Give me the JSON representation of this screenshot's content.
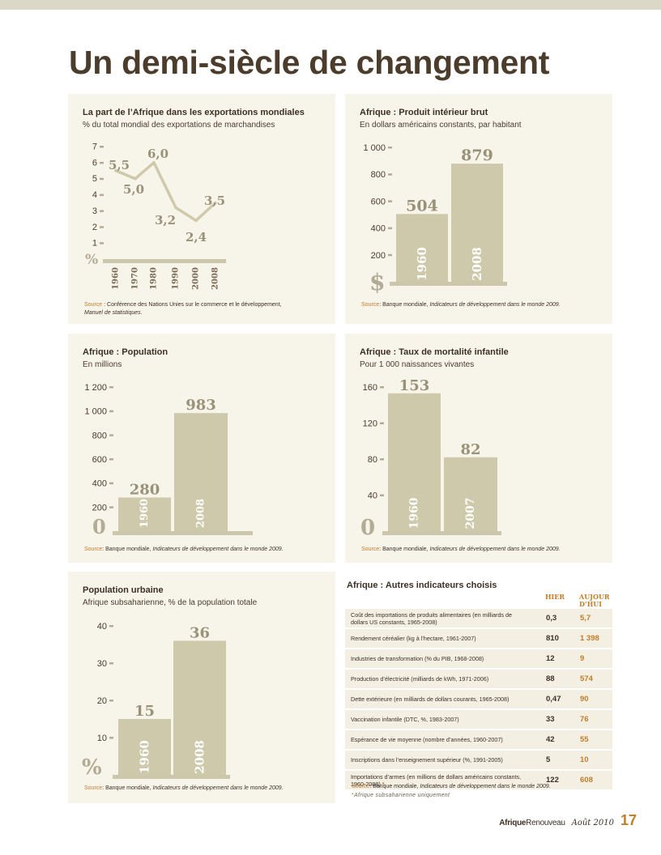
{
  "page": {
    "title": "Un demi-siècle de changement",
    "brand_a": "Afrique",
    "brand_b": "Renouveau",
    "date": "Août 2010",
    "page_number": "17"
  },
  "source_label": "Source",
  "chart_data": [
    {
      "id": "exports",
      "type": "line",
      "title": "La part de l’Afrique dans les exportations mondiales",
      "subtitle": "% du total mondial des exportations de marchandises",
      "x": [
        "1960",
        "1970",
        "1980",
        "1990",
        "2000",
        "2008"
      ],
      "values": [
        5.5,
        5.0,
        6.0,
        3.2,
        2.4,
        3.5
      ],
      "labels": [
        "5,5",
        "5,0",
        "6,0",
        "3,2",
        "2,4",
        "3,5"
      ],
      "y_ticks": [
        "1",
        "2",
        "3",
        "4",
        "5",
        "6",
        "7"
      ],
      "ylim": [
        0,
        7
      ],
      "unit_symbol": "%",
      "source_main": ": Conférence des Nations Unies sur le commerce et le développement,",
      "source_italic": "Manuel de statistiques."
    },
    {
      "id": "gdp",
      "type": "bar",
      "title": "Afrique : Produit intérieur brut",
      "subtitle": "En dollars américains constants, par habitant",
      "categories": [
        "1960",
        "2008"
      ],
      "values": [
        504,
        879
      ],
      "labels": [
        "504",
        "879"
      ],
      "y_ticks": [
        "200",
        "400",
        "600",
        "800",
        "1 000"
      ],
      "ylim": [
        0,
        1000
      ],
      "unit_symbol": "$",
      "source_main": "Banque mondiale, ",
      "source_italic": "Indicateurs de développement dans le monde 2009."
    },
    {
      "id": "population",
      "type": "bar",
      "title": "Afrique : Population",
      "subtitle": "En millions",
      "categories": [
        "1960",
        "2008"
      ],
      "values": [
        280,
        983
      ],
      "labels": [
        "280",
        "983"
      ],
      "y_ticks": [
        "200",
        "400",
        "600",
        "800",
        "1 000",
        "1 200"
      ],
      "ylim": [
        0,
        1200
      ],
      "unit_symbol": "0",
      "source_main": "Banque mondiale, ",
      "source_italic": "Indicateurs de développement dans le monde 2009."
    },
    {
      "id": "mortality",
      "type": "bar",
      "title": "Afrique : Taux de mortalité infantile",
      "subtitle": "Pour 1 000 naissances vivantes",
      "categories": [
        "1960",
        "2007"
      ],
      "values": [
        153,
        82
      ],
      "labels": [
        "153",
        "82"
      ],
      "y_ticks": [
        "40",
        "80",
        "120",
        "160"
      ],
      "ylim": [
        0,
        160
      ],
      "unit_symbol": "0",
      "source_main": "Banque mondiale, ",
      "source_italic": "Indicateurs de développement dans le monde 2009."
    },
    {
      "id": "urban",
      "type": "bar",
      "title": "Population urbaine",
      "subtitle": "Afrique subsaharienne, % de la population totale",
      "categories": [
        "1960",
        "2008"
      ],
      "values": [
        15,
        36
      ],
      "labels": [
        "15",
        "36"
      ],
      "y_ticks": [
        "10",
        "20",
        "30",
        "40"
      ],
      "ylim": [
        0,
        40
      ],
      "unit_symbol": "%",
      "source_main": "Banque mondiale, ",
      "source_italic": "Indicateurs de développement dans le monde 2009."
    },
    {
      "id": "indicators",
      "type": "table",
      "title": "Afrique : Autres indicateurs choisis",
      "col_hier": "HIER",
      "col_auj": "AUJOUR D’HUI",
      "rows": [
        {
          "label": "Coût des importations de produits alimentaires (en milliards de dollars US constants, 1965-2008)",
          "hier": "0,3",
          "auj": "5,7",
          "star": ""
        },
        {
          "label": "Rendement céréalier (kg à l’hectare, 1961-2007)",
          "hier": "810",
          "auj": "1 398",
          "star": ""
        },
        {
          "label": "Industries de transformation (% du PIB, 1968-2008)",
          "hier": "12",
          "auj": "9",
          "star": ""
        },
        {
          "label": "Production d’électricité (milliards de kWh, 1971-2006)",
          "hier": "88",
          "auj": "574",
          "star": ""
        },
        {
          "label": "Dette extérieure (en milliards de dollars courants, 1965-2008)",
          "hier": "0,47",
          "auj": "90",
          "star": ""
        },
        {
          "label": "Vaccination infantile (DTC, %, 1983-2007)",
          "hier": "33",
          "auj": "76",
          "star": ""
        },
        {
          "label": "Espérance de vie moyenne (nombre d’années, 1960-2007)",
          "hier": "42",
          "auj": "55",
          "star": ""
        },
        {
          "label": "Inscriptions dans l’enseignement supérieur (%, 1991-2005)",
          "hier": "5",
          "auj": "10",
          "star": ""
        },
        {
          "label": "Importations d’armes (en millions de dollars américains constants, 1960-2008)",
          "hier": "122",
          "auj": "608",
          "star": "*"
        }
      ],
      "source_main": "Banque mondiale, ",
      "source_italic": "Indicateurs de développement dans le monde 2009.",
      "note_star": "*",
      "note": "Afrique subsaharienne uniquement"
    }
  ]
}
